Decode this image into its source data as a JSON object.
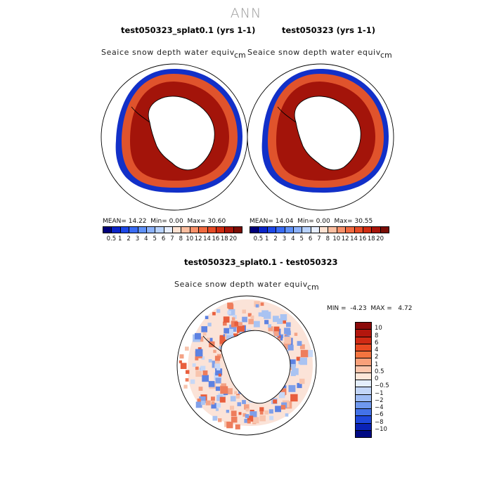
{
  "suptitle": "ANN",
  "panels": [
    {
      "title": "test050323_splat0.1 (yrs 1-1)",
      "variable": "Seaice snow depth water equiv",
      "units": "cm",
      "stats": {
        "mean_label": "MEAN=",
        "mean": "14.22",
        "min_label": "Min=",
        "min": "0.00",
        "max_label": "Max=",
        "max": "30.60"
      }
    },
    {
      "title": "test050323 (yrs 1-1)",
      "variable": "Seaice snow depth water equiv",
      "units": "cm",
      "stats": {
        "mean_label": "MEAN=",
        "mean": "14.04",
        "min_label": "Min=",
        "min": "0.00",
        "max_label": "Max=",
        "max": "30.55"
      }
    }
  ],
  "colorbar_main": {
    "labels": [
      "0.5",
      "1",
      "2",
      "3",
      "4",
      "5",
      "6",
      "7",
      "8",
      "10",
      "12",
      "14",
      "16",
      "18",
      "20"
    ],
    "colors": [
      "#00007a",
      "#0a24c8",
      "#1e48e8",
      "#3a6cf4",
      "#6092f8",
      "#8cb2fb",
      "#b8d2fd",
      "#e6eefe",
      "#fde2d2",
      "#fbbea0",
      "#f8916a",
      "#f06a40",
      "#e54b26",
      "#cf2c12",
      "#a8150a",
      "#7a0d05"
    ]
  },
  "diff_panel": {
    "title": "test050323_splat0.1 - test050323",
    "variable": "Seaice snow depth water equiv",
    "units": "cm",
    "stats": {
      "min_label": "MIN =",
      "min": "-4.23",
      "max_label": "MAX =",
      "max": "4.72"
    }
  },
  "colorbar_diff": {
    "labels": [
      "10",
      "8",
      "6",
      "4",
      "2",
      "1",
      "0.5",
      "0",
      "−0.5",
      "−1",
      "−2",
      "−4",
      "−6",
      "−8",
      "−10"
    ],
    "colors": [
      "#8b0a0a",
      "#b3160d",
      "#d02a14",
      "#e94a22",
      "#f4743f",
      "#f9a07a",
      "#fcc6ac",
      "#fde6d8",
      "#e4eefc",
      "#c3d6f8",
      "#9ebcf5",
      "#6f98ee",
      "#4372e8",
      "#1f48dc",
      "#0a22b6",
      "#000a84"
    ]
  }
}
